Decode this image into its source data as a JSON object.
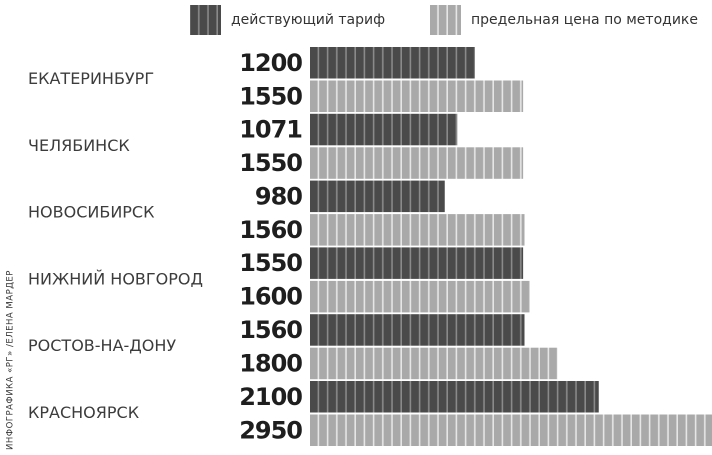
{
  "chart_data": {
    "type": "bar",
    "orientation": "horizontal",
    "categories": [
      "ЕКАТЕРИНБУРГ",
      "ЧЕЛЯБИНСК",
      "НОВОСИБИРСК",
      "НИЖНИЙ НОВГОРОД",
      "РОСТОВ-НА-ДОНУ",
      "КРАСНОЯРСК"
    ],
    "series": [
      {
        "name": "действующий тариф",
        "color": "#4a4a4a",
        "values": [
          1200,
          1071,
          980,
          1550,
          1560,
          2100
        ]
      },
      {
        "name": "предельная цена по методике",
        "color": "#a9a9a9",
        "values": [
          1550,
          1550,
          1560,
          1600,
          1800,
          2950
        ]
      }
    ],
    "credit": "ИНФОГРАФИКА «РГ» /ЕЛЕНА МАРДЕР"
  }
}
